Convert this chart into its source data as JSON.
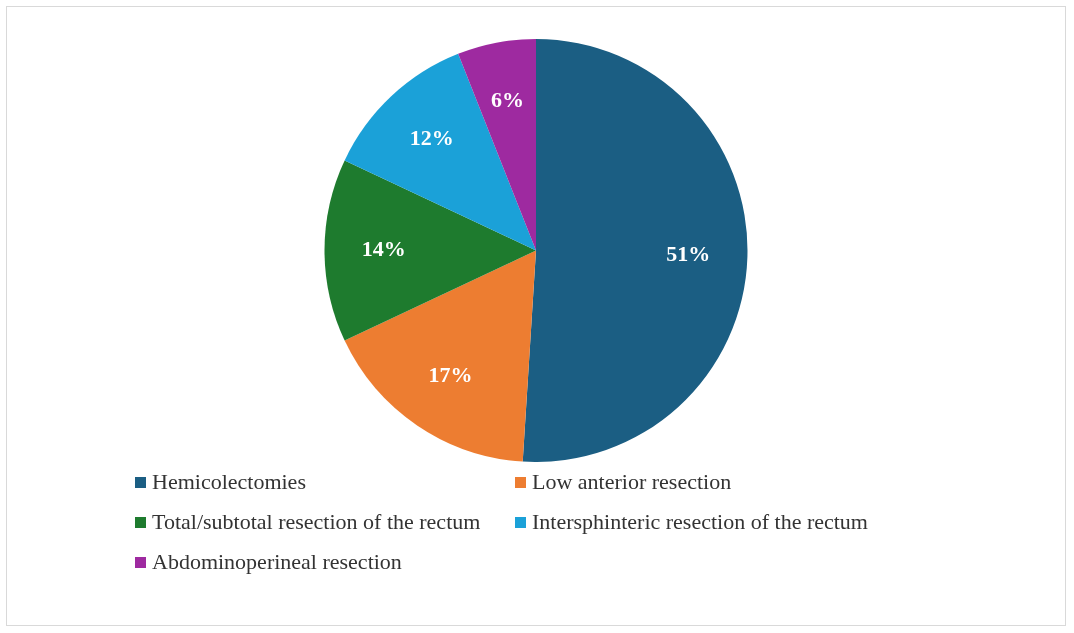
{
  "chart_data": {
    "type": "pie",
    "categories": [
      "Hemicolectomies",
      "Low anterior resection",
      "Total/subtotal resection of the rectum",
      "Intersphinteric resection of the rectum",
      "Abdominoperineal resection"
    ],
    "values": [
      51,
      17,
      14,
      12,
      6
    ],
    "colors": [
      "#1b5e83",
      "#ed7d31",
      "#1e7b2e",
      "#1ba1d8",
      "#9e2aa0"
    ],
    "value_labels": [
      "51%",
      "17%",
      "14%",
      "12%",
      "6%"
    ],
    "legend": "bottom"
  }
}
